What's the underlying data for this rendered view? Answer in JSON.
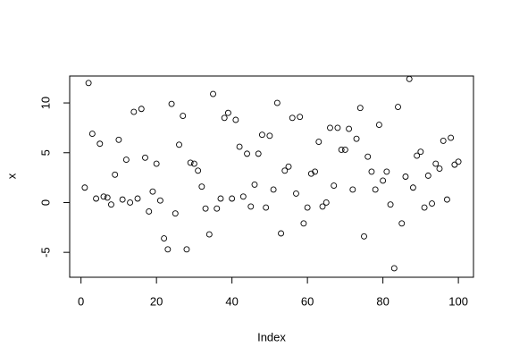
{
  "chart_data": {
    "type": "scatter",
    "xlabel": "Index",
    "ylabel": "x",
    "x": [
      1,
      2,
      3,
      4,
      5,
      6,
      7,
      8,
      9,
      10,
      11,
      12,
      13,
      14,
      15,
      16,
      17,
      18,
      19,
      20,
      21,
      22,
      23,
      24,
      25,
      26,
      27,
      28,
      29,
      30,
      31,
      32,
      33,
      34,
      35,
      36,
      37,
      38,
      39,
      40,
      41,
      42,
      43,
      44,
      45,
      46,
      47,
      48,
      49,
      50,
      51,
      52,
      53,
      54,
      55,
      56,
      57,
      58,
      59,
      60,
      61,
      62,
      63,
      64,
      65,
      66,
      67,
      68,
      69,
      70,
      71,
      72,
      73,
      74,
      75,
      76,
      77,
      78,
      79,
      80,
      81,
      82,
      83,
      84,
      85,
      86,
      87,
      88,
      89,
      90,
      91,
      92,
      93,
      94,
      95,
      96,
      97,
      98,
      99,
      100
    ],
    "values": [
      1.5,
      12.0,
      6.9,
      0.4,
      5.9,
      0.6,
      0.5,
      -0.2,
      2.8,
      6.3,
      0.3,
      4.3,
      0.0,
      9.1,
      0.4,
      9.4,
      4.5,
      -0.9,
      1.1,
      3.9,
      0.2,
      -3.6,
      -4.7,
      9.9,
      -1.1,
      5.8,
      8.7,
      -4.7,
      4.0,
      3.9,
      3.2,
      1.6,
      -0.6,
      -3.2,
      10.9,
      -0.6,
      0.4,
      8.5,
      9.0,
      0.4,
      8.3,
      5.6,
      0.6,
      4.9,
      -0.4,
      1.8,
      4.9,
      6.8,
      -0.5,
      6.7,
      1.3,
      10.0,
      -3.1,
      3.2,
      3.6,
      8.5,
      0.9,
      8.6,
      -2.1,
      -0.5,
      2.9,
      3.1,
      6.1,
      -0.4,
      0.0,
      7.5,
      1.7,
      7.5,
      5.3,
      5.3,
      7.4,
      1.3,
      6.4,
      9.5,
      -3.4,
      4.6,
      3.1,
      1.3,
      7.8,
      2.2,
      3.1,
      -0.2,
      -6.6,
      9.6,
      -2.1,
      2.6,
      12.4,
      1.5,
      4.7,
      5.1,
      -0.5,
      2.7,
      -0.1,
      3.9,
      3.4,
      6.2,
      0.3,
      6.5,
      3.8,
      4.1
    ],
    "color": "#000000",
    "xlim": [
      -3,
      104
    ],
    "ylim": [
      -7.5,
      12.7
    ],
    "xticks": [
      0,
      20,
      40,
      60,
      80,
      100
    ],
    "yticks": [
      -5,
      0,
      5,
      10
    ]
  }
}
